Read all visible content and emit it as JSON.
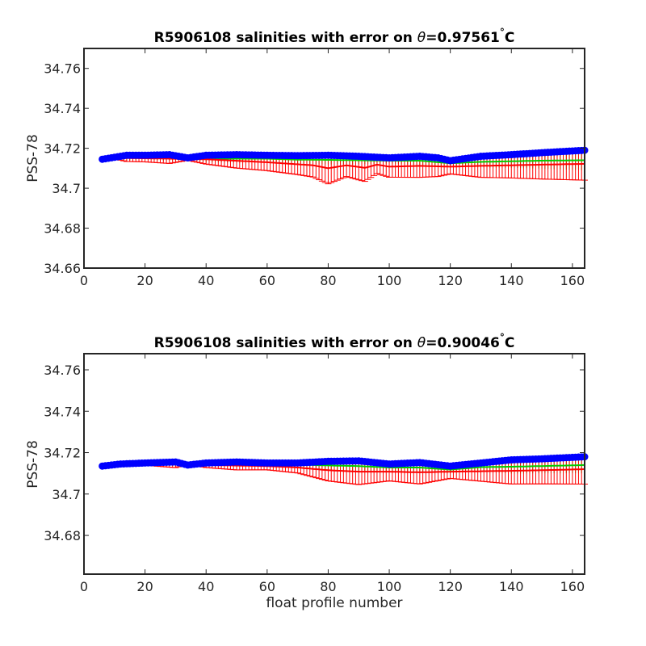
{
  "figure": {
    "xlabel": "float profile number"
  },
  "colors": {
    "blue_series": "#0000ff",
    "green_series": "#00cc00",
    "red_series": "#ff0000",
    "axes": "#262626"
  },
  "chart_data": [
    {
      "type": "scatter",
      "title_prefix": "R5906108 salinities with error on ",
      "title_theta": "θ",
      "title_value": "=0.97561",
      "title_degree": "°",
      "title_unit": "C",
      "xlabel": "",
      "ylabel": "PSS-78",
      "xlim": [
        0,
        164
      ],
      "ylim": [
        34.66,
        34.77
      ],
      "xticks": [
        0,
        20,
        40,
        60,
        80,
        100,
        120,
        140,
        160
      ],
      "yticks": [
        34.66,
        34.68,
        34.7,
        34.72,
        34.74,
        34.76
      ],
      "ytick_labels": [
        "34.66",
        "34.68",
        "34.7",
        "34.72",
        "34.74",
        "34.76"
      ],
      "x_start": 6,
      "x_end": 164,
      "series": [
        {
          "color": "blue",
          "marker": "circle",
          "points": [
            [
              6,
              34.7145
            ],
            [
              10,
              34.7155
            ],
            [
              14,
              34.7165
            ],
            [
              20,
              34.7165
            ],
            [
              28,
              34.7168
            ],
            [
              34,
              34.7152
            ],
            [
              40,
              34.7165
            ],
            [
              50,
              34.7168
            ],
            [
              60,
              34.7165
            ],
            [
              70,
              34.7163
            ],
            [
              80,
              34.7165
            ],
            [
              90,
              34.716
            ],
            [
              100,
              34.7152
            ],
            [
              110,
              34.716
            ],
            [
              116,
              34.7152
            ],
            [
              120,
              34.7138
            ],
            [
              130,
              34.716
            ],
            [
              140,
              34.7168
            ],
            [
              150,
              34.7178
            ],
            [
              164,
              34.719
            ]
          ]
        },
        {
          "color": "green",
          "marker": "line-errorbar",
          "points": [
            [
              6,
              34.7148
            ],
            [
              20,
              34.7155
            ],
            [
              40,
              34.7148
            ],
            [
              60,
              34.7148
            ],
            [
              70,
              34.7143
            ],
            [
              80,
              34.7142
            ],
            [
              90,
              34.714
            ],
            [
              100,
              34.7138
            ],
            [
              110,
              34.7138
            ],
            [
              120,
              34.7125
            ],
            [
              130,
              34.7132
            ],
            [
              140,
              34.7135
            ],
            [
              150,
              34.7138
            ],
            [
              164,
              34.714
            ]
          ]
        },
        {
          "color": "red",
          "marker": "line-errorbar",
          "points": [
            [
              6,
              34.7152
            ],
            [
              20,
              34.715
            ],
            [
              40,
              34.7145
            ],
            [
              60,
              34.713
            ],
            [
              70,
              34.712
            ],
            [
              75,
              34.7115
            ],
            [
              80,
              34.71
            ],
            [
              86,
              34.7115
            ],
            [
              92,
              34.7102
            ],
            [
              96,
              34.7118
            ],
            [
              100,
              34.7108
            ],
            [
              110,
              34.7112
            ],
            [
              120,
              34.7108
            ],
            [
              130,
              34.7112
            ],
            [
              140,
              34.7115
            ],
            [
              150,
              34.7118
            ],
            [
              164,
              34.7122
            ]
          ]
        }
      ]
    },
    {
      "type": "scatter",
      "title_prefix": "R5906108 salinities with error on ",
      "title_theta": "θ",
      "title_value": "=0.90046",
      "title_degree": "°",
      "title_unit": "C",
      "xlabel": "float profile number",
      "ylabel": "PSS-78",
      "xlim": [
        0,
        164
      ],
      "ylim": [
        34.6613,
        34.7678
      ],
      "xticks": [
        0,
        20,
        40,
        60,
        80,
        100,
        120,
        140,
        160
      ],
      "yticks": [
        34.68,
        34.7,
        34.72,
        34.74,
        34.76
      ],
      "ytick_labels": [
        "34.68",
        "34.7",
        "34.72",
        "34.74",
        "34.76"
      ],
      "x_start": 6,
      "x_end": 164,
      "series": [
        {
          "color": "blue",
          "marker": "circle",
          "points": [
            [
              6,
              34.7135
            ],
            [
              12,
              34.7145
            ],
            [
              20,
              34.715
            ],
            [
              30,
              34.7155
            ],
            [
              34,
              34.714
            ],
            [
              40,
              34.715
            ],
            [
              50,
              34.7155
            ],
            [
              60,
              34.715
            ],
            [
              70,
              34.715
            ],
            [
              80,
              34.7158
            ],
            [
              90,
              34.716
            ],
            [
              100,
              34.7145
            ],
            [
              110,
              34.7152
            ],
            [
              120,
              34.7135
            ],
            [
              130,
              34.715
            ],
            [
              140,
              34.7165
            ],
            [
              150,
              34.717
            ],
            [
              164,
              34.718
            ]
          ]
        },
        {
          "color": "green",
          "marker": "line-errorbar",
          "points": [
            [
              6,
              34.714
            ],
            [
              20,
              34.7145
            ],
            [
              40,
              34.7145
            ],
            [
              60,
              34.7145
            ],
            [
              70,
              34.7142
            ],
            [
              80,
              34.7138
            ],
            [
              90,
              34.7135
            ],
            [
              100,
              34.7128
            ],
            [
              110,
              34.7128
            ],
            [
              120,
              34.7118
            ],
            [
              130,
              34.713
            ],
            [
              140,
              34.7132
            ],
            [
              150,
              34.7135
            ],
            [
              164,
              34.714
            ]
          ]
        },
        {
          "color": "red",
          "marker": "line-errorbar",
          "points": [
            [
              6,
              34.7145
            ],
            [
              20,
              34.7145
            ],
            [
              40,
              34.714
            ],
            [
              60,
              34.7135
            ],
            [
              70,
              34.7128
            ],
            [
              80,
              34.7115
            ],
            [
              90,
              34.7108
            ],
            [
              100,
              34.7108
            ],
            [
              110,
              34.7105
            ],
            [
              120,
              34.7108
            ],
            [
              130,
              34.711
            ],
            [
              140,
              34.7112
            ],
            [
              150,
              34.7115
            ],
            [
              164,
              34.712
            ]
          ]
        }
      ]
    }
  ]
}
